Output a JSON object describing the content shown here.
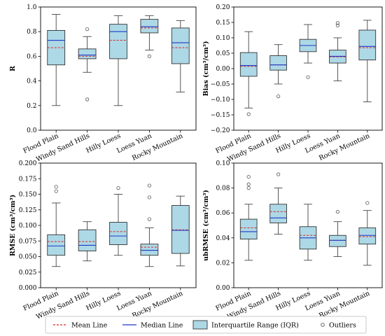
{
  "chart_data": [
    {
      "type": "box",
      "ylabel": "R",
      "ylim": [
        0,
        1.0
      ],
      "yticks": [
        "0.0",
        "0.2",
        "0.4",
        "0.6",
        "0.8",
        "1.0"
      ],
      "categories": [
        "Flood Plain",
        "Windy Sand Hills",
        "Hilly Loess",
        "Loess Yuan",
        "Rocky Mountain"
      ],
      "boxes": [
        {
          "whisker_low": 0.2,
          "q1": 0.53,
          "median": 0.73,
          "mean": 0.67,
          "q3": 0.81,
          "whisker_high": 0.94,
          "outliers": []
        },
        {
          "whisker_low": 0.47,
          "q1": 0.58,
          "median": 0.61,
          "mean": 0.6,
          "q3": 0.66,
          "whisker_high": 0.76,
          "outliers": [
            0.25,
            0.82
          ]
        },
        {
          "whisker_low": 0.2,
          "q1": 0.58,
          "median": 0.8,
          "mean": 0.73,
          "q3": 0.86,
          "whisker_high": 0.93,
          "outliers": []
        },
        {
          "whisker_low": 0.65,
          "q1": 0.79,
          "median": 0.84,
          "mean": 0.83,
          "q3": 0.9,
          "whisker_high": 0.93,
          "outliers": [
            0.6
          ]
        },
        {
          "whisker_low": 0.31,
          "q1": 0.54,
          "median": 0.71,
          "mean": 0.67,
          "q3": 0.83,
          "whisker_high": 0.89,
          "outliers": []
        }
      ]
    },
    {
      "type": "box",
      "ylabel": "Bias (cm³/cm³)",
      "ylim": [
        -0.2,
        0.2
      ],
      "yticks": [
        "−0.20",
        "−0.15",
        "−0.10",
        "−0.05",
        "0.00",
        "0.05",
        "0.10",
        "0.15",
        "0.20"
      ],
      "categories": [
        "Flood Plain",
        "Windy Sand Hills",
        "Hilly Loess",
        "Loess Yuan",
        "Rocky Mountain"
      ],
      "boxes": [
        {
          "whisker_low": -0.128,
          "q1": -0.025,
          "median": 0.01,
          "mean": 0.007,
          "q3": 0.052,
          "whisker_high": 0.12,
          "outliers": [
            -0.148
          ]
        },
        {
          "whisker_low": -0.05,
          "q1": -0.005,
          "median": 0.012,
          "mean": 0.012,
          "q3": 0.042,
          "whisker_high": 0.078,
          "outliers": [
            -0.09
          ]
        },
        {
          "whisker_low": 0.018,
          "q1": 0.055,
          "median": 0.075,
          "mean": 0.075,
          "q3": 0.095,
          "whisker_high": 0.143,
          "outliers": [
            -0.028
          ]
        },
        {
          "whisker_low": -0.04,
          "q1": 0.018,
          "median": 0.04,
          "mean": 0.038,
          "q3": 0.06,
          "whisker_high": 0.1,
          "outliers": [
            0.14,
            0.148
          ]
        },
        {
          "whisker_low": -0.108,
          "q1": 0.028,
          "median": 0.072,
          "mean": 0.068,
          "q3": 0.125,
          "whisker_high": 0.157,
          "outliers": []
        }
      ]
    },
    {
      "type": "box",
      "ylabel": "RMSE (cm³/cm³)",
      "ylim": [
        0,
        0.2
      ],
      "yticks": [
        "0.000",
        "0.025",
        "0.050",
        "0.075",
        "0.100",
        "0.125",
        "0.150",
        "0.175",
        "0.200"
      ],
      "categories": [
        "Flood Plain",
        "Windy Sand Hills",
        "Hilly Loess",
        "Loess Yuan",
        "Rocky Mountain"
      ],
      "boxes": [
        {
          "whisker_low": 0.034,
          "q1": 0.052,
          "median": 0.067,
          "mean": 0.074,
          "q3": 0.085,
          "whisker_high": 0.136,
          "outliers": [
            0.155,
            0.162
          ]
        },
        {
          "whisker_low": 0.043,
          "q1": 0.059,
          "median": 0.068,
          "mean": 0.074,
          "q3": 0.093,
          "whisker_high": 0.106,
          "outliers": []
        },
        {
          "whisker_low": 0.052,
          "q1": 0.069,
          "median": 0.083,
          "mean": 0.09,
          "q3": 0.105,
          "whisker_high": 0.15,
          "outliers": [
            0.16
          ]
        },
        {
          "whisker_low": 0.034,
          "q1": 0.052,
          "median": 0.06,
          "mean": 0.065,
          "q3": 0.07,
          "whisker_high": 0.096,
          "outliers": [
            0.11,
            0.145,
            0.164
          ]
        },
        {
          "whisker_low": 0.035,
          "q1": 0.055,
          "median": 0.092,
          "mean": 0.093,
          "q3": 0.132,
          "whisker_high": 0.147,
          "outliers": []
        }
      ]
    },
    {
      "type": "box",
      "ylabel": "ubRMSE (cm³/cm³)",
      "ylim": [
        0,
        0.1
      ],
      "yticks": [
        "0.00",
        "0.02",
        "0.04",
        "0.06",
        "0.08",
        "0.10"
      ],
      "categories": [
        "Flood Plain",
        "Windy Sand Hills",
        "Hilly Loess",
        "Loess Yuan",
        "Rocky Mountain"
      ],
      "boxes": [
        {
          "whisker_low": 0.022,
          "q1": 0.039,
          "median": 0.045,
          "mean": 0.048,
          "q3": 0.055,
          "whisker_high": 0.067,
          "outliers": [
            0.08,
            0.083,
            0.089
          ]
        },
        {
          "whisker_low": 0.043,
          "q1": 0.052,
          "median": 0.056,
          "mean": 0.061,
          "q3": 0.067,
          "whisker_high": 0.08,
          "outliers": [
            0.091
          ]
        },
        {
          "whisker_low": 0.022,
          "q1": 0.031,
          "median": 0.04,
          "mean": 0.042,
          "q3": 0.049,
          "whisker_high": 0.067,
          "outliers": []
        },
        {
          "whisker_low": 0.025,
          "q1": 0.033,
          "median": 0.038,
          "mean": 0.038,
          "q3": 0.042,
          "whisker_high": 0.053,
          "outliers": [
            0.061
          ]
        },
        {
          "whisker_low": 0.018,
          "q1": 0.035,
          "median": 0.042,
          "mean": 0.041,
          "q3": 0.048,
          "whisker_high": 0.062,
          "outliers": [
            0.068
          ]
        }
      ]
    }
  ],
  "legend": {
    "placement": "bottom",
    "items": [
      {
        "label": "Mean Line",
        "kind": "dashed-line",
        "color": "#d62728"
      },
      {
        "label": "Median Line",
        "kind": "line",
        "color": "#1f3ac7"
      },
      {
        "label": "Interquartile Range (IQR)",
        "kind": "box",
        "color": "#add8e6"
      },
      {
        "label": "Outliers",
        "kind": "circle",
        "color": "#555555"
      }
    ]
  },
  "colors": {
    "box_fill": "#add8e6",
    "box_edge": "#333333",
    "whisker": "#444444",
    "median": "#1f3ac7",
    "mean": "#d62728",
    "outlier": "#555555"
  }
}
